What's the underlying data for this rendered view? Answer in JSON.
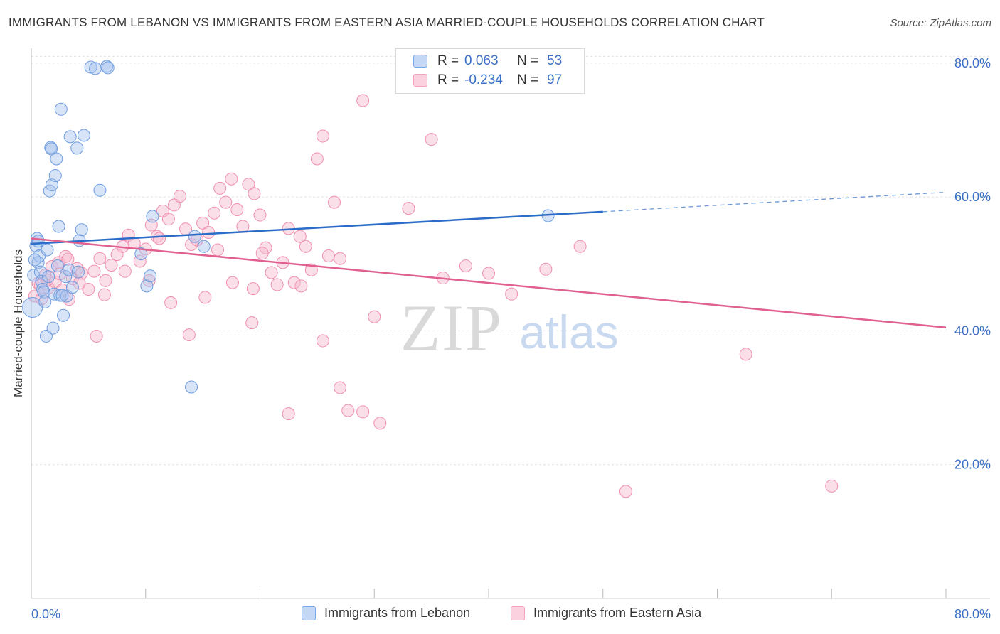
{
  "title": "IMMIGRANTS FROM LEBANON VS IMMIGRANTS FROM EASTERN ASIA MARRIED-COUPLE HOUSEHOLDS CORRELATION CHART",
  "source": "Source: ZipAtlas.com",
  "watermark": {
    "zip": "ZIP",
    "atlas": "atlas"
  },
  "legend": {
    "r_label": "R =",
    "n_label": "N =",
    "series": [
      {
        "r": "0.063",
        "n": "53"
      },
      {
        "r": "-0.234",
        "n": "97"
      }
    ]
  },
  "chart_data": {
    "type": "scatter",
    "title": "IMMIGRANTS FROM LEBANON VS IMMIGRANTS FROM EASTERN ASIA MARRIED-COUPLE HOUSEHOLDS CORRELATION CHART",
    "xlabel": "",
    "ylabel": "Married-couple Households",
    "xlim": [
      0,
      80
    ],
    "ylim": [
      0,
      82
    ],
    "x_tick_labels": [
      "0.0%",
      "80.0%"
    ],
    "y_ticks": [
      20,
      40,
      60,
      80
    ],
    "y_tick_labels": [
      "20.0%",
      "40.0%",
      "60.0%",
      "80.0%"
    ],
    "grid": true,
    "legend_position": "top-center",
    "series": [
      {
        "name": "Immigrants from Lebanon",
        "color": "#7aa7e8",
        "line_color": "#2b6cc8",
        "trend": {
          "x1": 0.0,
          "y1": 53.0,
          "x2": 50.0,
          "y2": 57.8,
          "dashed_to_x": 80.0,
          "dashed_to_y": 60.7
        },
        "points": [
          [
            0.1,
            43.5
          ],
          [
            0.2,
            48.3
          ],
          [
            0.4,
            52.7
          ],
          [
            0.5,
            53.8
          ],
          [
            0.6,
            50.2
          ],
          [
            0.7,
            51.2
          ],
          [
            0.8,
            48.8
          ],
          [
            0.9,
            47.4
          ],
          [
            1.0,
            46.2
          ],
          [
            1.1,
            45.8
          ],
          [
            1.2,
            44.3
          ],
          [
            1.3,
            39.2
          ],
          [
            1.4,
            52.1
          ],
          [
            1.5,
            48.1
          ],
          [
            1.6,
            60.9
          ],
          [
            1.7,
            67.4
          ],
          [
            1.75,
            67.2
          ],
          [
            1.8,
            61.8
          ],
          [
            1.9,
            40.4
          ],
          [
            2.0,
            45.5
          ],
          [
            2.1,
            63.2
          ],
          [
            2.2,
            65.7
          ],
          [
            2.3,
            49.7
          ],
          [
            2.4,
            55.6
          ],
          [
            2.5,
            45.3
          ],
          [
            2.6,
            73.1
          ],
          [
            2.8,
            42.3
          ],
          [
            3.0,
            48.1
          ],
          [
            3.1,
            45.2
          ],
          [
            3.3,
            49.1
          ],
          [
            3.4,
            69.0
          ],
          [
            3.6,
            46.5
          ],
          [
            4.0,
            67.3
          ],
          [
            4.1,
            48.8
          ],
          [
            4.2,
            53.5
          ],
          [
            4.4,
            55.1
          ],
          [
            4.6,
            69.2
          ],
          [
            5.2,
            79.4
          ],
          [
            5.6,
            79.2
          ],
          [
            6.0,
            61.0
          ],
          [
            6.6,
            79.5
          ],
          [
            6.7,
            79.3
          ],
          [
            9.6,
            51.5
          ],
          [
            10.1,
            46.7
          ],
          [
            10.4,
            48.2
          ],
          [
            10.6,
            57.1
          ],
          [
            14.0,
            31.6
          ],
          [
            14.3,
            54.1
          ],
          [
            15.1,
            52.6
          ],
          [
            45.2,
            57.2
          ],
          [
            0.3,
            50.6
          ],
          [
            0.6,
            53.4
          ],
          [
            2.7,
            45.3
          ]
        ]
      },
      {
        "name": "Immigrants from Eastern Asia",
        "color": "#f4a3bf",
        "line_color": "#e0608f",
        "trend": {
          "x1": 0.0,
          "y1": 53.8,
          "x2": 80.0,
          "y2": 40.5
        },
        "points": [
          [
            0.3,
            45.2
          ],
          [
            0.6,
            47.1
          ],
          [
            0.9,
            44.8
          ],
          [
            1.2,
            48.3
          ],
          [
            1.5,
            46.4
          ],
          [
            1.8,
            49.6
          ],
          [
            2.1,
            47.3
          ],
          [
            2.4,
            50.2
          ],
          [
            2.7,
            46.1
          ],
          [
            3.0,
            51.1
          ],
          [
            3.3,
            44.7
          ],
          [
            3.6,
            47.8
          ],
          [
            4.0,
            49.3
          ],
          [
            4.4,
            48.6
          ],
          [
            5.0,
            46.2
          ],
          [
            5.5,
            48.9
          ],
          [
            6.0,
            50.8
          ],
          [
            6.5,
            47.5
          ],
          [
            7.0,
            49.8
          ],
          [
            7.5,
            51.4
          ],
          [
            8.0,
            52.6
          ],
          [
            8.5,
            54.3
          ],
          [
            9.0,
            53.1
          ],
          [
            9.5,
            50.4
          ],
          [
            10.0,
            52.2
          ],
          [
            10.5,
            55.8
          ],
          [
            11.0,
            54.1
          ],
          [
            11.5,
            57.9
          ],
          [
            12.0,
            56.7
          ],
          [
            12.5,
            58.8
          ],
          [
            13.0,
            60.1
          ],
          [
            13.5,
            55.2
          ],
          [
            14.0,
            52.9
          ],
          [
            14.5,
            53.6
          ],
          [
            15.0,
            56.1
          ],
          [
            15.5,
            54.7
          ],
          [
            16.0,
            57.6
          ],
          [
            16.5,
            61.3
          ],
          [
            17.0,
            59.2
          ],
          [
            17.5,
            62.7
          ],
          [
            18.0,
            58.1
          ],
          [
            18.5,
            55.6
          ],
          [
            19.0,
            61.9
          ],
          [
            19.5,
            60.5
          ],
          [
            20.0,
            57.3
          ],
          [
            20.5,
            52.4
          ],
          [
            21.0,
            48.7
          ],
          [
            21.5,
            46.9
          ],
          [
            22.0,
            50.2
          ],
          [
            22.5,
            55.3
          ],
          [
            23.0,
            47.2
          ],
          [
            23.5,
            54.1
          ],
          [
            24.0,
            52.6
          ],
          [
            24.5,
            49.1
          ],
          [
            25.0,
            65.7
          ],
          [
            25.5,
            69.1
          ],
          [
            26.0,
            51.2
          ],
          [
            26.5,
            59.2
          ],
          [
            27.0,
            50.8
          ],
          [
            29.0,
            74.4
          ],
          [
            30.0,
            42.1
          ],
          [
            33.0,
            58.3
          ],
          [
            35.0,
            68.6
          ],
          [
            36.0,
            47.9
          ],
          [
            38.0,
            49.7
          ],
          [
            40.0,
            48.6
          ],
          [
            42.0,
            45.5
          ],
          [
            45.0,
            49.2
          ],
          [
            48.0,
            52.6
          ],
          [
            52.0,
            16.0
          ],
          [
            62.5,
            36.5
          ],
          [
            70.0,
            16.8
          ],
          [
            25.5,
            38.5
          ],
          [
            27.0,
            31.5
          ],
          [
            27.7,
            28.1
          ],
          [
            29.0,
            27.9
          ],
          [
            30.5,
            26.2
          ],
          [
            22.5,
            27.6
          ],
          [
            19.3,
            41.2
          ],
          [
            13.8,
            39.4
          ],
          [
            5.7,
            39.2
          ],
          [
            10.3,
            47.5
          ],
          [
            12.2,
            44.2
          ],
          [
            15.2,
            45.0
          ],
          [
            17.6,
            47.2
          ],
          [
            19.4,
            46.3
          ],
          [
            23.6,
            46.7
          ],
          [
            11.2,
            53.8
          ],
          [
            8.2,
            48.9
          ],
          [
            6.4,
            45.4
          ],
          [
            4.2,
            47.1
          ],
          [
            3.2,
            50.7
          ],
          [
            2.5,
            48.5
          ],
          [
            1.4,
            47.6
          ],
          [
            0.8,
            46.8
          ],
          [
            16.3,
            52.1
          ],
          [
            20.2,
            51.6
          ]
        ]
      }
    ]
  }
}
